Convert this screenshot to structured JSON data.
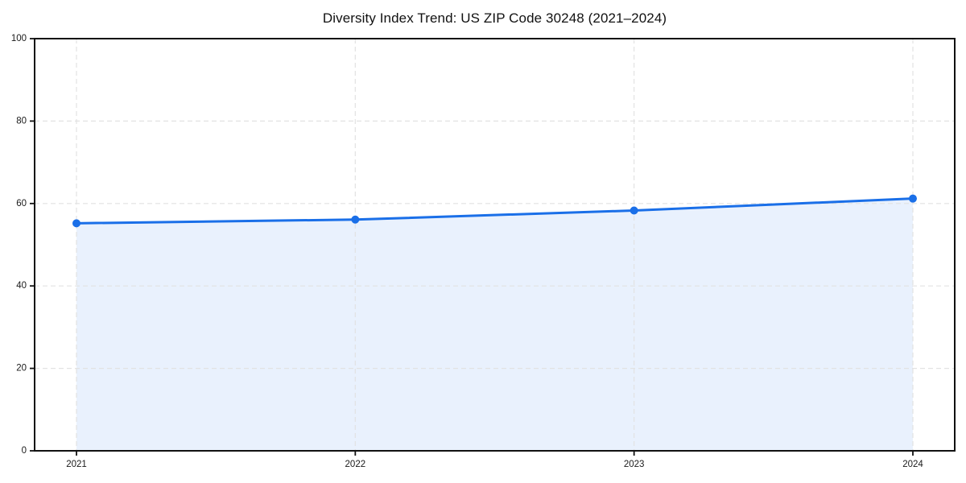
{
  "chart_data": {
    "type": "area",
    "title": "Diversity Index Trend: US ZIP Code 30248 (2021–2024)",
    "categories": [
      "2021",
      "2022",
      "2023",
      "2024"
    ],
    "series": [
      {
        "name": "Diversity Index",
        "values": [
          55.2,
          56.1,
          58.3,
          61.2
        ]
      }
    ],
    "xlabel": "",
    "ylabel": "",
    "ylim": [
      0,
      100
    ],
    "yticks": [
      0,
      20,
      40,
      60,
      80,
      100
    ],
    "grid": true,
    "grid_style": "dashed",
    "legend": "none",
    "line_color": "#1a6fe8",
    "fill_color": "#e9f1fd",
    "marker": "circle",
    "grid_color": "#e2e2e2",
    "axis_color": "#111111",
    "background": "#ffffff"
  }
}
